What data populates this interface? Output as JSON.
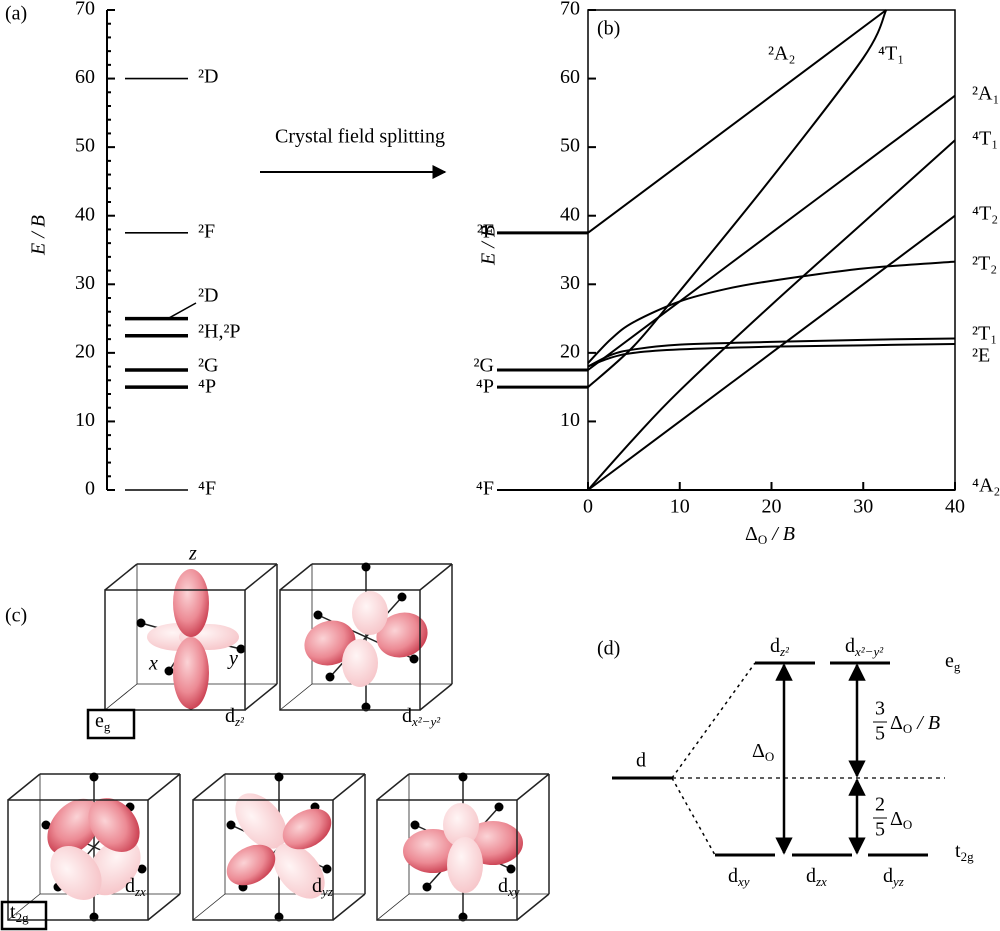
{
  "chart_data": [
    {
      "type": "levels",
      "panel": "(a)",
      "ylabel": "E / B",
      "categories": [
        "⁴F",
        "⁴P",
        "²G",
        "²H,²P",
        "²D",
        "²F",
        "²D"
      ],
      "values": [
        0,
        15,
        17.5,
        22.5,
        25,
        37.5,
        60
      ],
      "ylim": [
        0,
        70
      ],
      "yticks": [
        0,
        10,
        20,
        30,
        40,
        50,
        60,
        70
      ]
    },
    {
      "type": "line",
      "panel": "(b)",
      "ylabel": "E / B",
      "xlabel": {
        "base": "Δ",
        "sub": "O",
        "tail": " / B"
      },
      "xlim": [
        0,
        40
      ],
      "xticks": [
        0,
        10,
        20,
        30,
        40
      ],
      "ylim": [
        0,
        70
      ],
      "yticks": [
        10,
        20,
        30,
        40,
        50,
        60,
        70
      ],
      "free_ion": {
        "categories": [
          "⁴F",
          "⁴P",
          "²G",
          "²F"
        ],
        "values": [
          0,
          15,
          17.5,
          37.5
        ]
      },
      "series": [
        {
          "name": "⁴A₂",
          "x": [
            0,
            40
          ],
          "values": [
            0,
            0
          ]
        },
        {
          "name": "⁴T₂",
          "x": [
            0,
            10,
            20,
            30,
            40
          ],
          "values": [
            0,
            10,
            20,
            30,
            40
          ]
        },
        {
          "name": "⁴T₁",
          "x": [
            0,
            5,
            10,
            20,
            30,
            40
          ],
          "values": [
            0,
            7.5,
            14.5,
            27,
            39,
            51
          ]
        },
        {
          "name": "⁴T₁",
          "x": [
            0,
            5,
            10,
            20,
            30,
            32.5
          ],
          "values": [
            15,
            21,
            29,
            45.5,
            63,
            70
          ]
        },
        {
          "name": "²A₁",
          "x": [
            0,
            10,
            20,
            30,
            40
          ],
          "values": [
            17.5,
            27.5,
            37.5,
            47.5,
            57.5
          ]
        },
        {
          "name": "²A₂",
          "x": [
            0,
            10,
            20,
            32.5
          ],
          "values": [
            37.5,
            47.5,
            57.5,
            70
          ]
        },
        {
          "name": "²T₂",
          "x": [
            0,
            2.5,
            5,
            10,
            15,
            20,
            30,
            40
          ],
          "values": [
            18.5,
            22,
            24.5,
            27.5,
            29.3,
            30.5,
            32.3,
            33.3
          ]
        },
        {
          "name": "²T₁",
          "x": [
            0,
            2.5,
            5,
            10,
            20,
            30,
            40
          ],
          "values": [
            18,
            19.7,
            20.5,
            21.2,
            21.6,
            21.9,
            22.1
          ]
        },
        {
          "name": "²E",
          "x": [
            0,
            2.5,
            5,
            10,
            20,
            30,
            40
          ],
          "values": [
            18,
            19.3,
            20,
            20.5,
            20.9,
            21.1,
            21.3
          ]
        }
      ]
    }
  ],
  "arrow_label": "Crystal field splitting",
  "orbitals": {
    "panel": "(c)",
    "axes": [
      "z",
      "x",
      "y"
    ],
    "eg": {
      "base": "e",
      "sub": "g"
    },
    "t2g": {
      "base": "t",
      "sub": "2g"
    },
    "names": [
      {
        "base": "d",
        "sub": "z²"
      },
      {
        "base": "d",
        "sub": "x²−y²"
      },
      {
        "base": "d",
        "sub": "zx"
      },
      {
        "base": "d",
        "sub": "yz"
      },
      {
        "base": "d",
        "sub": "xy"
      }
    ]
  },
  "splitting": {
    "panel": "(d)",
    "d": "d",
    "eg": {
      "base": "e",
      "sub": "g"
    },
    "t2g": {
      "base": "t",
      "sub": "2g"
    },
    "upper": [
      {
        "base": "d",
        "sub": "z²"
      },
      {
        "base": "d",
        "sub": "x²−y²"
      }
    ],
    "lower": [
      {
        "base": "d",
        "sub": "xy"
      },
      {
        "base": "d",
        "sub": "zx"
      },
      {
        "base": "d",
        "sub": "yz"
      }
    ],
    "delta": {
      "base": "Δ",
      "sub": "O"
    },
    "upper_gap": {
      "num": "3",
      "den": "5",
      "base": "Δ",
      "sub": "O",
      "tail": " / B"
    },
    "lower_gap": {
      "num": "2",
      "den": "5",
      "base": "Δ",
      "sub": "O"
    }
  }
}
